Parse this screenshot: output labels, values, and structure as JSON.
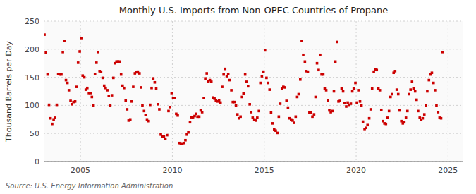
{
  "chart_data": {
    "type": "scatter",
    "title": "Monthly U.S. Imports from Non-OPEC Countries of Propane",
    "ylabel": "Thousand Barrels per Day",
    "annotations": [
      "Source: U.S. Energy Information Administration"
    ],
    "color": "#cc0000",
    "marker": "square",
    "grid": true,
    "xlim": [
      2003.0,
      2025.83
    ],
    "ylim": [
      0,
      250
    ],
    "xticks": [
      2005,
      2010,
      2015,
      2020,
      2025
    ],
    "yticks": [
      0,
      50,
      100,
      150,
      200,
      250
    ],
    "x": [
      2003.04,
      2003.12,
      2003.21,
      2003.29,
      2003.37,
      2003.46,
      2003.54,
      2003.62,
      2003.71,
      2003.79,
      2003.87,
      2003.96,
      2004.04,
      2004.12,
      2004.21,
      2004.29,
      2004.37,
      2004.46,
      2004.54,
      2004.62,
      2004.71,
      2004.79,
      2004.87,
      2004.96,
      2005.04,
      2005.12,
      2005.21,
      2005.29,
      2005.37,
      2005.46,
      2005.54,
      2005.62,
      2005.71,
      2005.79,
      2005.87,
      2005.96,
      2006.04,
      2006.12,
      2006.21,
      2006.29,
      2006.37,
      2006.46,
      2006.54,
      2006.62,
      2006.71,
      2006.79,
      2006.87,
      2006.96,
      2007.04,
      2007.12,
      2007.21,
      2007.29,
      2007.37,
      2007.46,
      2007.54,
      2007.62,
      2007.71,
      2007.79,
      2007.87,
      2007.96,
      2008.04,
      2008.12,
      2008.21,
      2008.29,
      2008.37,
      2008.46,
      2008.54,
      2008.62,
      2008.71,
      2008.79,
      2008.87,
      2008.96,
      2009.04,
      2009.12,
      2009.21,
      2009.29,
      2009.37,
      2009.46,
      2009.54,
      2009.62,
      2009.71,
      2009.79,
      2009.87,
      2009.96,
      2010.04,
      2010.12,
      2010.21,
      2010.29,
      2010.37,
      2010.46,
      2010.54,
      2010.62,
      2010.71,
      2010.79,
      2010.87,
      2010.96,
      2011.04,
      2011.12,
      2011.21,
      2011.29,
      2011.37,
      2011.46,
      2011.54,
      2011.62,
      2011.71,
      2011.79,
      2011.87,
      2011.96,
      2012.04,
      2012.12,
      2012.21,
      2012.29,
      2012.37,
      2012.46,
      2012.54,
      2012.62,
      2012.71,
      2012.79,
      2012.87,
      2012.96,
      2013.04,
      2013.12,
      2013.21,
      2013.29,
      2013.37,
      2013.46,
      2013.54,
      2013.62,
      2013.71,
      2013.79,
      2013.87,
      2013.96,
      2014.04,
      2014.12,
      2014.21,
      2014.29,
      2014.37,
      2014.46,
      2014.54,
      2014.62,
      2014.71,
      2014.79,
      2014.87,
      2014.96,
      2015.04,
      2015.12,
      2015.21,
      2015.29,
      2015.37,
      2015.46,
      2015.54,
      2015.62,
      2015.71,
      2015.79,
      2015.87,
      2015.96,
      2016.04,
      2016.12,
      2016.21,
      2016.29,
      2016.37,
      2016.46,
      2016.54,
      2016.62,
      2016.71,
      2016.79,
      2016.87,
      2016.96,
      2017.04,
      2017.12,
      2017.21,
      2017.29,
      2017.37,
      2017.46,
      2017.54,
      2017.62,
      2017.71,
      2017.79,
      2017.87,
      2017.96,
      2018.04,
      2018.12,
      2018.21,
      2018.29,
      2018.37,
      2018.46,
      2018.54,
      2018.62,
      2018.71,
      2018.79,
      2018.87,
      2018.96,
      2019.04,
      2019.12,
      2019.21,
      2019.29,
      2019.37,
      2019.46,
      2019.54,
      2019.62,
      2019.71,
      2019.79,
      2019.87,
      2019.96,
      2020.04,
      2020.12,
      2020.21,
      2020.29,
      2020.37,
      2020.46,
      2020.54,
      2020.62,
      2020.71,
      2020.79,
      2020.87,
      2020.96,
      2021.04,
      2021.12,
      2021.21,
      2021.29,
      2021.37,
      2021.46,
      2021.54,
      2021.62,
      2021.71,
      2021.79,
      2021.87,
      2021.96,
      2022.04,
      2022.12,
      2022.21,
      2022.29,
      2022.37,
      2022.46,
      2022.54,
      2022.62,
      2022.71,
      2022.79,
      2022.87,
      2022.96,
      2023.04,
      2023.12,
      2023.21,
      2023.29,
      2023.37,
      2023.46,
      2023.54,
      2023.62,
      2023.71,
      2023.79,
      2023.87,
      2023.96,
      2024.04,
      2024.12,
      2024.21,
      2024.29,
      2024.37,
      2024.46,
      2024.54,
      2024.62,
      2024.71
    ],
    "values": [
      226,
      194,
      155,
      101,
      77,
      67,
      75,
      78,
      101,
      156,
      155,
      155,
      195,
      215,
      145,
      140,
      127,
      108,
      102,
      106,
      107,
      133,
      176,
      196,
      220,
      153,
      150,
      128,
      131,
      122,
      122,
      115,
      100,
      156,
      176,
      195,
      161,
      160,
      149,
      135,
      131,
      127,
      117,
      100,
      118,
      149,
      175,
      178,
      178,
      178,
      155,
      135,
      131,
      109,
      93,
      73,
      75,
      107,
      133,
      157,
      159,
      160,
      157,
      132,
      100,
      90,
      83,
      75,
      72,
      101,
      131,
      148,
      141,
      130,
      102,
      93,
      48,
      45,
      45,
      40,
      47,
      90,
      97,
      122,
      113,
      113,
      85,
      82,
      33,
      32,
      32,
      33,
      38,
      48,
      52,
      70,
      79,
      79,
      81,
      85,
      80,
      80,
      91,
      88,
      113,
      148,
      157,
      143,
      145,
      142,
      114,
      112,
      109,
      107,
      109,
      105,
      133,
      155,
      165,
      152,
      156,
      145,
      127,
      106,
      106,
      100,
      84,
      77,
      80,
      115,
      121,
      155,
      142,
      134,
      102,
      88,
      78,
      75,
      73,
      78,
      90,
      140,
      152,
      160,
      198,
      149,
      140,
      128,
      87,
      68,
      57,
      55,
      51,
      80,
      103,
      130,
      133,
      132,
      108,
      96,
      77,
      75,
      73,
      69,
      80,
      115,
      120,
      146,
      215,
      190,
      178,
      161,
      160,
      87,
      87,
      80,
      84,
      115,
      175,
      163,
      190,
      155,
      155,
      130,
      127,
      109,
      91,
      88,
      90,
      125,
      178,
      213,
      107,
      108,
      130,
      125,
      104,
      98,
      105,
      101,
      103,
      125,
      130,
      140,
      105,
      127,
      107,
      100,
      71,
      58,
      60,
      65,
      77,
      93,
      130,
      160,
      164,
      163,
      130,
      127,
      92,
      72,
      68,
      67,
      78,
      90,
      115,
      120,
      158,
      161,
      128,
      120,
      91,
      72,
      68,
      70,
      78,
      90,
      120,
      128,
      142,
      130,
      125,
      110,
      90,
      78,
      74,
      77,
      84,
      100,
      125,
      145,
      155,
      158,
      140,
      127,
      100,
      88,
      78,
      77,
      195
    ]
  }
}
